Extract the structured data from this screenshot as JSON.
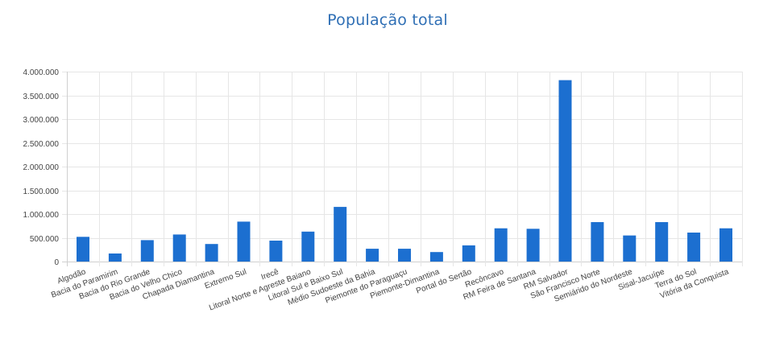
{
  "chart_data": {
    "type": "bar",
    "title": "População total",
    "xlabel": "",
    "ylabel": "",
    "ylim": [
      0,
      4000000
    ],
    "yticks": [
      0,
      500000,
      1000000,
      1500000,
      2000000,
      2500000,
      3000000,
      3500000,
      4000000
    ],
    "ytick_labels": [
      "0",
      "500.000",
      "1.000.000",
      "1.500.000",
      "2.000.000",
      "2.500.000",
      "3.000.000",
      "3.500.000",
      "4.000.000"
    ],
    "grid": true,
    "bar_color": "#1c6fd0",
    "categories": [
      "Algodão",
      "Bacia do Paramirim",
      "Bacia do Rio Grande",
      "Bacia do Velho Chico",
      "Chapada Diamantina",
      "Extremo Sul",
      "Irecê",
      "Litoral Norte e Agreste Baiano",
      "Litoral Sul e Baixo Sul",
      "Médio Sudoeste da Bahia",
      "Piemonte do Paraguaçu",
      "Piemonte-Dimantina",
      "Portal do Sertão",
      "Recôncavo",
      "RM Feira de Santana",
      "RM Salvador",
      "São Francisco Norte",
      "Semiárido do Nordeste",
      "Sisal-Jacuípe",
      "Terra do Sol",
      "Vitória da Conquista"
    ],
    "values": [
      520000,
      170000,
      450000,
      570000,
      370000,
      840000,
      440000,
      630000,
      1150000,
      270000,
      270000,
      200000,
      340000,
      700000,
      690000,
      3820000,
      830000,
      550000,
      830000,
      610000,
      700000
    ]
  }
}
